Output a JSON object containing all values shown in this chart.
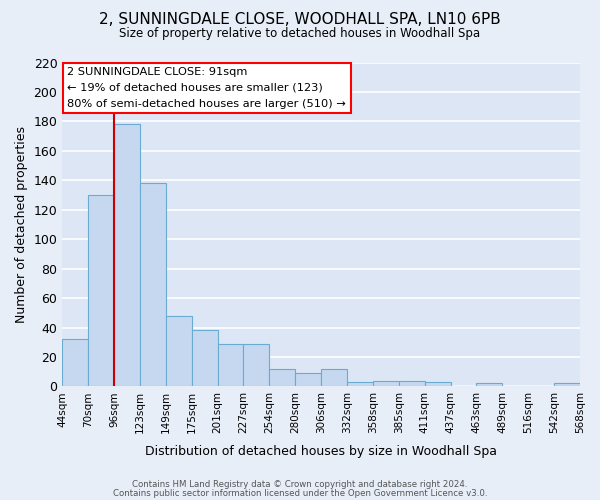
{
  "title": "2, SUNNINGDALE CLOSE, WOODHALL SPA, LN10 6PB",
  "subtitle": "Size of property relative to detached houses in Woodhall Spa",
  "xlabel": "Distribution of detached houses by size in Woodhall Spa",
  "ylabel": "Number of detached properties",
  "bar_values": [
    32,
    130,
    178,
    138,
    48,
    38,
    29,
    29,
    12,
    9,
    12,
    3,
    4,
    4,
    3,
    0,
    2,
    0,
    0,
    2
  ],
  "bar_labels": [
    "44sqm",
    "70sqm",
    "96sqm",
    "123sqm",
    "149sqm",
    "175sqm",
    "201sqm",
    "227sqm",
    "254sqm",
    "280sqm",
    "306sqm",
    "332sqm",
    "358sqm",
    "385sqm",
    "411sqm",
    "437sqm",
    "463sqm",
    "489sqm",
    "516sqm",
    "542sqm",
    "568sqm"
  ],
  "bar_color": "#c5d8f0",
  "bar_edgecolor": "#6aabd2",
  "background_color": "#e8eef8",
  "plot_bg_color": "#dce6f4",
  "grid_color": "#ffffff",
  "redline_x": 2,
  "redline_color": "#cc0000",
  "ylim": [
    0,
    220
  ],
  "yticks": [
    0,
    20,
    40,
    60,
    80,
    100,
    120,
    140,
    160,
    180,
    200,
    220
  ],
  "annotation_title": "2 SUNNINGDALE CLOSE: 91sqm",
  "annotation_line1": "← 19% of detached houses are smaller (123)",
  "annotation_line2": "80% of semi-detached houses are larger (510) →",
  "footer_line1": "Contains HM Land Registry data © Crown copyright and database right 2024.",
  "footer_line2": "Contains public sector information licensed under the Open Government Licence v3.0."
}
